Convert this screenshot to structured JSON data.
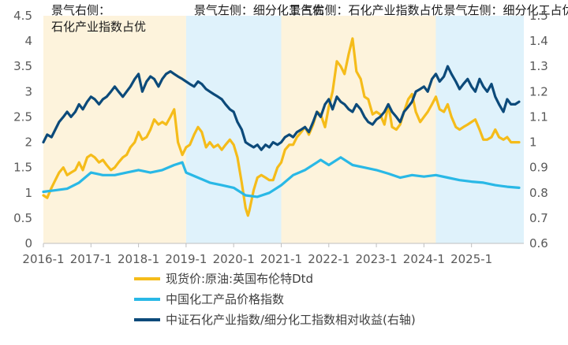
{
  "chart_data": {
    "type": "line",
    "title": "",
    "xlabel": "",
    "ylabel": "",
    "x_ticks": [
      "2016-1",
      "2017-1",
      "2018-1",
      "2019-1",
      "2020-1",
      "2021-1",
      "2022-1",
      "2023-1",
      "2024-1",
      "2025-1"
    ],
    "x_range": [
      2016.0,
      2026.1
    ],
    "y_left": {
      "range": [
        0,
        4.5
      ],
      "ticks": [
        "0",
        "0.5",
        "1",
        "1.5",
        "2",
        "2.5",
        "3",
        "3.5",
        "4",
        "4.5"
      ]
    },
    "y_right": {
      "range": [
        0.6,
        1.5
      ],
      "ticks": [
        "0.6",
        "0.7",
        "0.8",
        "0.9",
        "1",
        "1.1",
        "1.2",
        "1.3",
        "1.4",
        "1.5"
      ]
    },
    "bands": [
      {
        "start": 2016.0,
        "end": 2019.0,
        "color": "#fdf3dc",
        "label_lines": [
          "景气右侧：",
          "石化产业指数占优"
        ]
      },
      {
        "start": 2019.0,
        "end": 2021.0,
        "color": "#dff2fb",
        "label_lines": [
          "景气左侧：细分化工占优"
        ]
      },
      {
        "start": 2021.0,
        "end": 2024.25,
        "color": "#fdf3dc",
        "label_lines": [
          "景气右侧：石化产业指数占优"
        ]
      },
      {
        "start": 2024.25,
        "end": 2026.1,
        "color": "#dff2fb",
        "label_lines": [
          "景气左侧：细分化工占优"
        ]
      }
    ],
    "series": [
      {
        "name": "现货价:原油:英国布伦特Dtd",
        "axis": "left",
        "color": "#f5bc1a",
        "x": [
          2016.0,
          2016.08,
          2016.17,
          2016.25,
          2016.33,
          2016.42,
          2016.5,
          2016.58,
          2016.67,
          2016.75,
          2016.83,
          2016.92,
          2017.0,
          2017.08,
          2017.17,
          2017.25,
          2017.33,
          2017.42,
          2017.5,
          2017.58,
          2017.67,
          2017.75,
          2017.83,
          2017.92,
          2018.0,
          2018.08,
          2018.17,
          2018.25,
          2018.33,
          2018.42,
          2018.5,
          2018.58,
          2018.67,
          2018.75,
          2018.83,
          2018.92,
          2019.0,
          2019.08,
          2019.17,
          2019.25,
          2019.33,
          2019.42,
          2019.5,
          2019.58,
          2019.67,
          2019.75,
          2019.83,
          2019.92,
          2020.0,
          2020.08,
          2020.17,
          2020.25,
          2020.3,
          2020.33,
          2020.42,
          2020.5,
          2020.58,
          2020.67,
          2020.75,
          2020.83,
          2020.92,
          2021.0,
          2021.08,
          2021.17,
          2021.25,
          2021.33,
          2021.42,
          2021.5,
          2021.58,
          2021.67,
          2021.75,
          2021.83,
          2021.92,
          2022.0,
          2022.08,
          2022.17,
          2022.25,
          2022.33,
          2022.42,
          2022.5,
          2022.58,
          2022.67,
          2022.75,
          2022.83,
          2022.92,
          2023.0,
          2023.08,
          2023.17,
          2023.25,
          2023.33,
          2023.42,
          2023.5,
          2023.58,
          2023.67,
          2023.75,
          2023.83,
          2023.92,
          2024.0,
          2024.08,
          2024.17,
          2024.25,
          2024.33,
          2024.42,
          2024.5,
          2024.58,
          2024.67,
          2024.75,
          2024.83,
          2024.92,
          2025.0,
          2025.08,
          2025.17,
          2025.25,
          2025.33,
          2025.42,
          2025.5,
          2025.58,
          2025.67,
          2025.75,
          2025.83,
          2025.92,
          2026.0
        ],
        "values": [
          0.95,
          0.9,
          1.1,
          1.25,
          1.4,
          1.5,
          1.35,
          1.4,
          1.45,
          1.6,
          1.45,
          1.7,
          1.75,
          1.7,
          1.6,
          1.65,
          1.55,
          1.45,
          1.5,
          1.6,
          1.7,
          1.75,
          1.9,
          2.0,
          2.2,
          2.05,
          2.1,
          2.25,
          2.45,
          2.35,
          2.4,
          2.35,
          2.5,
          2.65,
          2.0,
          1.75,
          1.9,
          1.95,
          2.15,
          2.3,
          2.2,
          1.9,
          2.0,
          1.9,
          1.95,
          1.85,
          1.95,
          2.05,
          1.95,
          1.7,
          1.2,
          0.7,
          0.55,
          0.65,
          1.05,
          1.3,
          1.35,
          1.3,
          1.25,
          1.25,
          1.5,
          1.6,
          1.85,
          1.95,
          1.95,
          2.1,
          2.2,
          2.3,
          2.15,
          2.35,
          2.6,
          2.55,
          2.3,
          2.7,
          3.0,
          3.6,
          3.5,
          3.35,
          3.75,
          4.05,
          3.4,
          3.25,
          2.9,
          2.85,
          2.55,
          2.6,
          2.55,
          2.35,
          2.75,
          2.3,
          2.25,
          2.35,
          2.6,
          2.85,
          2.95,
          2.6,
          2.4,
          2.5,
          2.6,
          2.75,
          2.9,
          2.65,
          2.6,
          2.75,
          2.5,
          2.3,
          2.25,
          2.3,
          2.35,
          2.4,
          2.45,
          2.25,
          2.05,
          2.05,
          2.1,
          2.25,
          2.1,
          2.05,
          2.1,
          2.0,
          2.0,
          2.0
        ]
      },
      {
        "name": "中国化工产品价格指数",
        "axis": "left",
        "color": "#29b8e6",
        "x": [
          2016.0,
          2016.25,
          2016.5,
          2016.75,
          2017.0,
          2017.25,
          2017.5,
          2017.75,
          2018.0,
          2018.25,
          2018.5,
          2018.75,
          2018.92,
          2019.0,
          2019.25,
          2019.5,
          2019.75,
          2020.0,
          2020.25,
          2020.5,
          2020.75,
          2021.0,
          2021.25,
          2021.5,
          2021.75,
          2021.83,
          2022.0,
          2022.25,
          2022.5,
          2022.75,
          2023.0,
          2023.25,
          2023.5,
          2023.75,
          2024.0,
          2024.25,
          2024.5,
          2024.75,
          2025.0,
          2025.25,
          2025.5,
          2025.75,
          2026.0
        ],
        "values": [
          1.02,
          1.05,
          1.08,
          1.2,
          1.4,
          1.35,
          1.35,
          1.4,
          1.45,
          1.4,
          1.45,
          1.55,
          1.6,
          1.4,
          1.3,
          1.2,
          1.15,
          1.1,
          0.95,
          0.92,
          1.0,
          1.15,
          1.35,
          1.45,
          1.6,
          1.65,
          1.55,
          1.7,
          1.55,
          1.5,
          1.45,
          1.38,
          1.3,
          1.35,
          1.32,
          1.35,
          1.3,
          1.25,
          1.22,
          1.2,
          1.15,
          1.12,
          1.1
        ]
      },
      {
        "name": "中证石化产业指数/细分化工指数相对收益(右轴)",
        "axis": "right",
        "color": "#0c4a7a",
        "x": [
          2016.0,
          2016.08,
          2016.17,
          2016.25,
          2016.33,
          2016.42,
          2016.5,
          2016.58,
          2016.67,
          2016.75,
          2016.83,
          2016.92,
          2017.0,
          2017.08,
          2017.17,
          2017.25,
          2017.33,
          2017.42,
          2017.5,
          2017.58,
          2017.67,
          2017.75,
          2017.83,
          2017.92,
          2018.0,
          2018.08,
          2018.17,
          2018.25,
          2018.33,
          2018.42,
          2018.5,
          2018.58,
          2018.67,
          2018.75,
          2018.83,
          2018.92,
          2019.0,
          2019.08,
          2019.17,
          2019.25,
          2019.33,
          2019.42,
          2019.5,
          2019.58,
          2019.67,
          2019.75,
          2019.83,
          2019.92,
          2020.0,
          2020.08,
          2020.17,
          2020.25,
          2020.33,
          2020.42,
          2020.5,
          2020.58,
          2020.67,
          2020.75,
          2020.83,
          2020.92,
          2021.0,
          2021.08,
          2021.17,
          2021.25,
          2021.33,
          2021.42,
          2021.5,
          2021.58,
          2021.67,
          2021.75,
          2021.83,
          2021.92,
          2022.0,
          2022.08,
          2022.17,
          2022.25,
          2022.33,
          2022.42,
          2022.5,
          2022.58,
          2022.67,
          2022.75,
          2022.83,
          2022.92,
          2023.0,
          2023.08,
          2023.17,
          2023.25,
          2023.33,
          2023.42,
          2023.5,
          2023.58,
          2023.67,
          2023.75,
          2023.83,
          2023.92,
          2024.0,
          2024.08,
          2024.17,
          2024.25,
          2024.33,
          2024.42,
          2024.5,
          2024.58,
          2024.67,
          2024.75,
          2024.83,
          2024.92,
          2025.0,
          2025.08,
          2025.17,
          2025.25,
          2025.33,
          2025.42,
          2025.5,
          2025.58,
          2025.67,
          2025.75,
          2025.83,
          2025.92,
          2026.0
        ],
        "values": [
          1.0,
          1.03,
          1.02,
          1.05,
          1.08,
          1.1,
          1.12,
          1.1,
          1.12,
          1.15,
          1.13,
          1.16,
          1.18,
          1.17,
          1.15,
          1.17,
          1.18,
          1.2,
          1.22,
          1.2,
          1.18,
          1.2,
          1.22,
          1.25,
          1.27,
          1.2,
          1.24,
          1.26,
          1.25,
          1.22,
          1.25,
          1.27,
          1.28,
          1.27,
          1.26,
          1.25,
          1.24,
          1.23,
          1.22,
          1.24,
          1.23,
          1.21,
          1.2,
          1.19,
          1.18,
          1.17,
          1.15,
          1.13,
          1.12,
          1.08,
          1.05,
          1.0,
          0.99,
          0.98,
          0.99,
          0.97,
          0.99,
          0.98,
          1.0,
          0.99,
          1.0,
          1.02,
          1.03,
          1.02,
          1.04,
          1.05,
          1.06,
          1.04,
          1.08,
          1.12,
          1.1,
          1.15,
          1.17,
          1.13,
          1.18,
          1.16,
          1.15,
          1.13,
          1.12,
          1.15,
          1.13,
          1.1,
          1.08,
          1.07,
          1.09,
          1.1,
          1.12,
          1.15,
          1.12,
          1.1,
          1.08,
          1.12,
          1.14,
          1.16,
          1.2,
          1.21,
          1.22,
          1.2,
          1.25,
          1.27,
          1.24,
          1.26,
          1.3,
          1.27,
          1.24,
          1.21,
          1.23,
          1.25,
          1.22,
          1.2,
          1.25,
          1.22,
          1.2,
          1.23,
          1.18,
          1.15,
          1.12,
          1.17,
          1.15,
          1.15,
          1.16
        ]
      }
    ]
  }
}
